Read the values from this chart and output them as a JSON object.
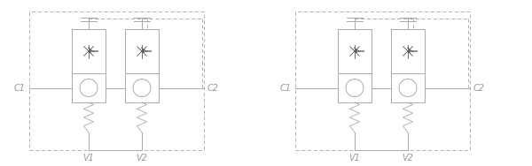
{
  "line_color": "#aaaaaa",
  "dash_color": "#b0b0b0",
  "text_color": "#999999",
  "symbol_color": "#555555",
  "bg_color": "#ffffff",
  "label_c1": "C1",
  "label_c2": "C2",
  "label_v1": "V1",
  "label_v2": "V2",
  "fig_w": 6.0,
  "fig_h": 1.88,
  "dpi": 100
}
